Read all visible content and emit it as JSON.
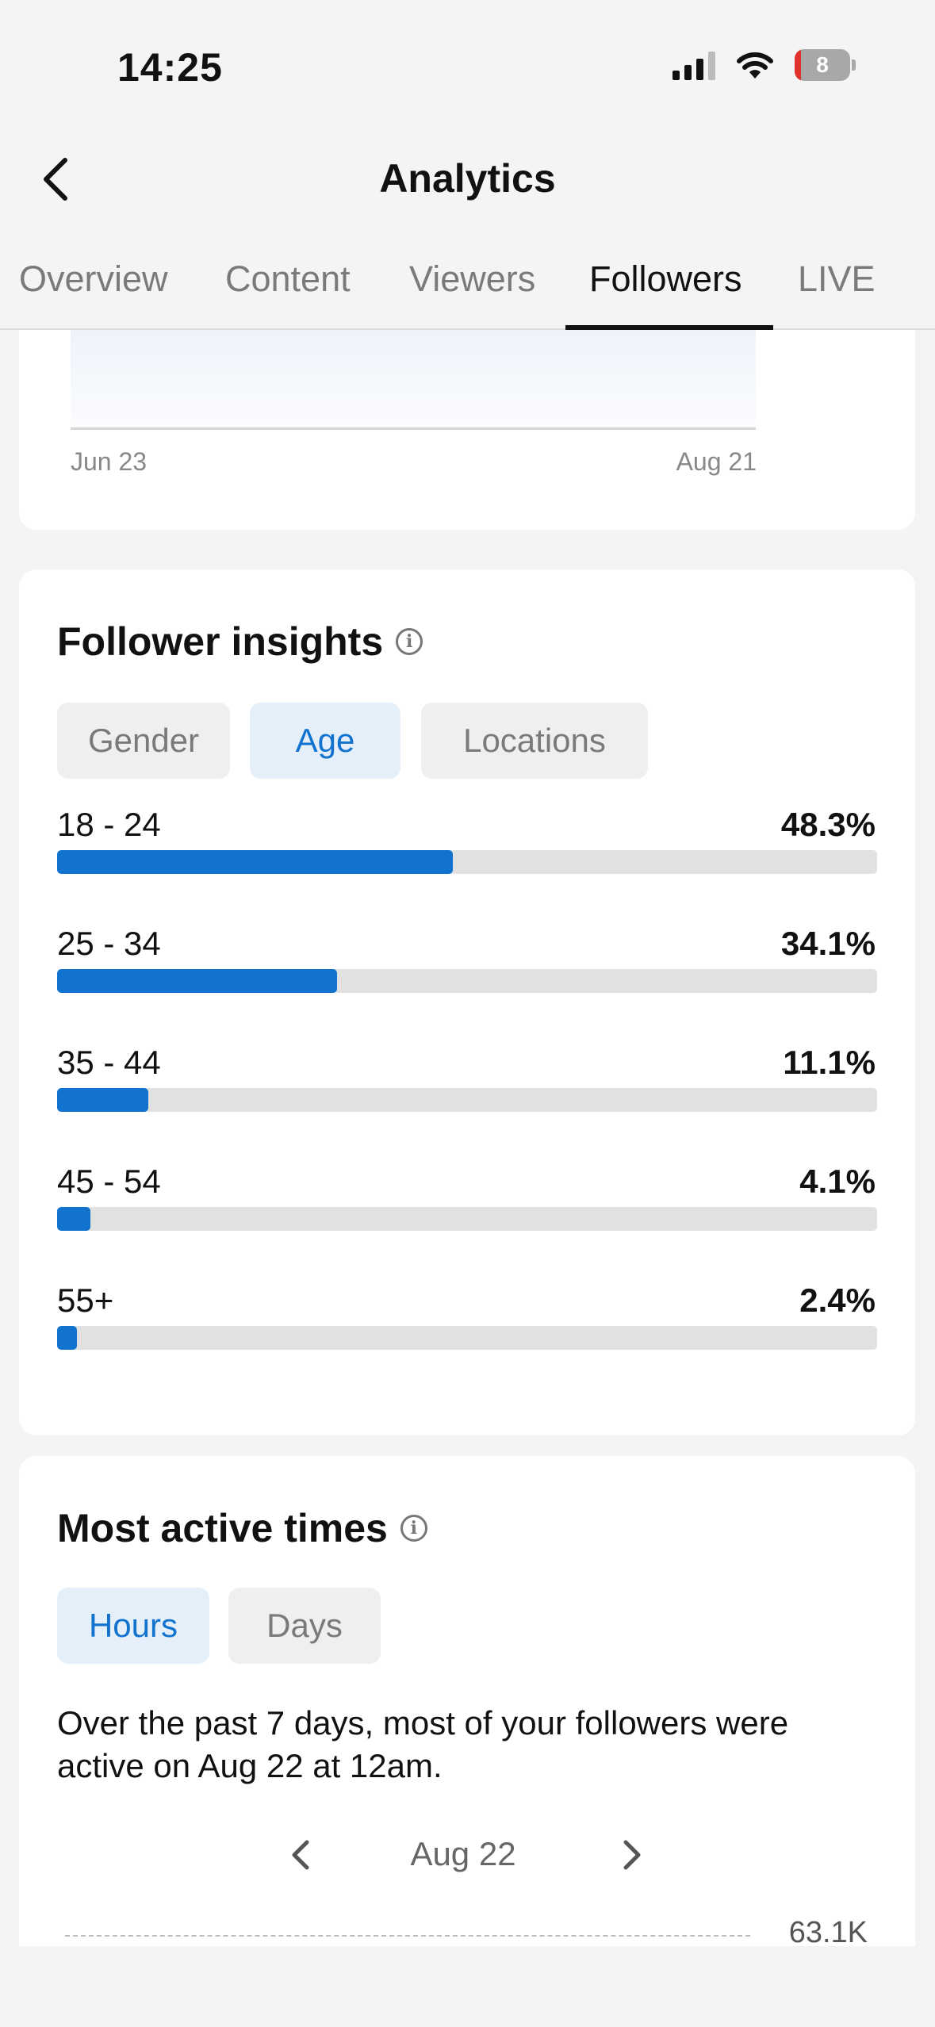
{
  "status": {
    "time": "14:25",
    "battery": "8"
  },
  "header": {
    "title": "Analytics"
  },
  "tabs": [
    {
      "label": "Overview"
    },
    {
      "label": "Content"
    },
    {
      "label": "Viewers"
    },
    {
      "label": "Followers"
    },
    {
      "label": "LIVE"
    }
  ],
  "active_tab": "Followers",
  "follower_chart": {
    "start_label": "Jun 23",
    "end_label": "Aug 21"
  },
  "insights": {
    "title": "Follower insights",
    "filters": [
      {
        "label": "Gender"
      },
      {
        "label": "Age"
      },
      {
        "label": "Locations"
      }
    ],
    "selected_filter": "Age",
    "rows": [
      {
        "label": "18 - 24",
        "value": "48.3%",
        "fraction": 0.483
      },
      {
        "label": "25 - 34",
        "value": "34.1%",
        "fraction": 0.341
      },
      {
        "label": "35 - 44",
        "value": "11.1%",
        "fraction": 0.111
      },
      {
        "label": "45 - 54",
        "value": "4.1%",
        "fraction": 0.041
      },
      {
        "label": "55+",
        "value": "2.4%",
        "fraction": 0.024
      }
    ],
    "bar_color": "#1273cf"
  },
  "active_times": {
    "title": "Most active times",
    "filters": [
      {
        "label": "Hours"
      },
      {
        "label": "Days"
      }
    ],
    "selected_filter": "Hours",
    "description": "Over the past 7 days, most of your followers were active on Aug 22 at 12am.",
    "date": "Aug 22",
    "peak_value": "63.1K"
  }
}
